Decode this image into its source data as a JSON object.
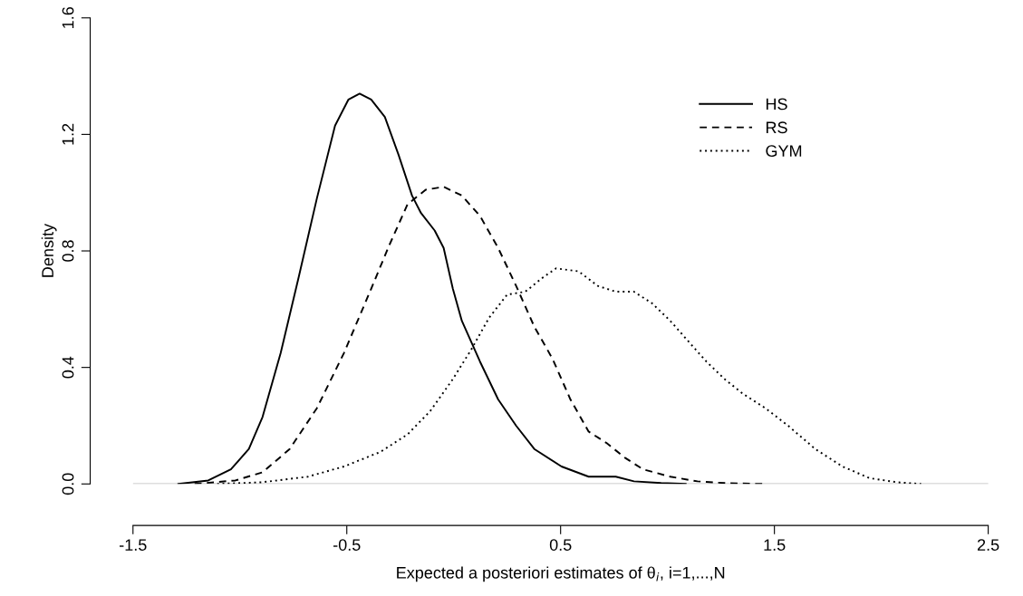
{
  "chart_data": {
    "type": "line",
    "xlabel": "Expected a posteriori estimates of θ$_{i}$, i=1,...,N",
    "ylabel": "Density",
    "xlim": [
      -1.5,
      2.5
    ],
    "xticks": [
      -1.5,
      -0.5,
      0.5,
      1.5,
      2.5
    ],
    "ylim": [
      0,
      1.6
    ],
    "yticks": [
      {
        "value": 0,
        "label": "0.0"
      },
      {
        "value": 0.4,
        "label": "0.4"
      },
      {
        "value": 0.8,
        "label": "0.8"
      },
      {
        "value": 1.2,
        "label": "1.2"
      },
      {
        "value": 1.6,
        "label": "1.6"
      }
    ],
    "grid": false,
    "legend": "top right",
    "ref_lines": [
      {
        "axis": "y",
        "value": 0,
        "color": "#bebebe"
      }
    ],
    "series": [
      {
        "name": "HS",
        "color": "#000000",
        "line_style": "solid",
        "x": [
          -1.288,
          -1.148,
          -1.042,
          -0.958,
          -0.894,
          -0.809,
          -0.725,
          -0.64,
          -0.555,
          -0.492,
          -0.44,
          -0.386,
          -0.322,
          -0.258,
          -0.195,
          -0.153,
          -0.089,
          -0.047,
          -0.004,
          0.038,
          0.123,
          0.208,
          0.292,
          0.377,
          0.504,
          0.631,
          0.758,
          0.843,
          0.97,
          1.085
        ],
        "values": [
          0,
          0.012,
          0.05,
          0.12,
          0.23,
          0.45,
          0.71,
          0.98,
          1.23,
          1.32,
          1.34,
          1.32,
          1.26,
          1.13,
          0.99,
          0.93,
          0.87,
          0.81,
          0.67,
          0.56,
          0.42,
          0.29,
          0.2,
          0.12,
          0.06,
          0.025,
          0.025,
          0.009,
          0.003,
          0
        ]
      },
      {
        "name": "RS",
        "color": "#000000",
        "line_style": "dashed",
        "x": [
          -1.212,
          -1.021,
          -0.894,
          -0.767,
          -0.64,
          -0.513,
          -0.386,
          -0.301,
          -0.216,
          -0.131,
          -0.047,
          0.038,
          0.123,
          0.208,
          0.292,
          0.377,
          0.462,
          0.546,
          0.631,
          0.716,
          0.801,
          0.886,
          1.013,
          1.14,
          1.267,
          1.445
        ],
        "values": [
          0,
          0.012,
          0.04,
          0.12,
          0.26,
          0.45,
          0.67,
          0.82,
          0.96,
          1.01,
          1.02,
          0.99,
          0.92,
          0.81,
          0.68,
          0.54,
          0.43,
          0.29,
          0.18,
          0.14,
          0.09,
          0.05,
          0.025,
          0.009,
          0.003,
          0
        ]
      },
      {
        "name": "GYM",
        "color": "#000000",
        "line_style": "dotted",
        "x": [
          -1.106,
          -0.894,
          -0.682,
          -0.513,
          -0.343,
          -0.216,
          -0.11,
          -0.004,
          0.081,
          0.165,
          0.25,
          0.335,
          0.419,
          0.479,
          0.584,
          0.674,
          0.758,
          0.843,
          0.928,
          1.013,
          1.097,
          1.182,
          1.267,
          1.352,
          1.458,
          1.564,
          1.691,
          1.818,
          1.945,
          2.072,
          2.186
        ],
        "values": [
          0,
          0.006,
          0.025,
          0.06,
          0.11,
          0.17,
          0.25,
          0.36,
          0.46,
          0.57,
          0.65,
          0.66,
          0.71,
          0.74,
          0.73,
          0.68,
          0.66,
          0.66,
          0.62,
          0.56,
          0.49,
          0.42,
          0.36,
          0.31,
          0.26,
          0.2,
          0.12,
          0.06,
          0.02,
          0.006,
          0
        ]
      }
    ]
  }
}
